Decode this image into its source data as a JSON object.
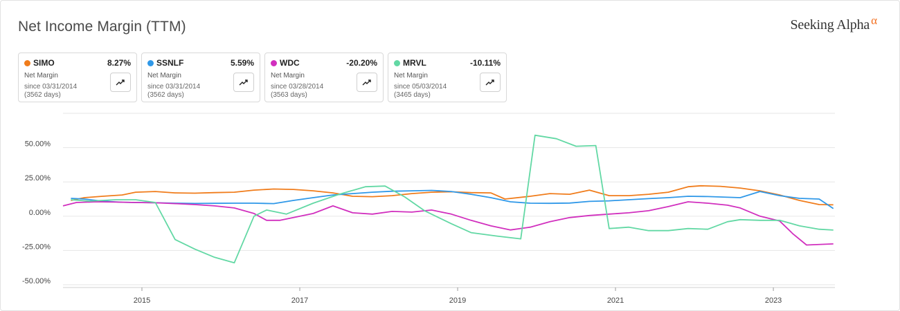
{
  "header": {
    "title": "Net Income Margin (TTM)",
    "brand_name": "Seeking Alpha",
    "brand_mark": "α"
  },
  "cards": [
    {
      "symbol": "SIMO",
      "value": "8.27%",
      "metric": "Net Margin",
      "since": "since 03/31/2014",
      "days": "(3562 days)",
      "color": "#f07c1b"
    },
    {
      "symbol": "SSNLF",
      "value": "5.59%",
      "metric": "Net Margin",
      "since": "since 03/31/2014",
      "days": "(3562 days)",
      "color": "#2f98e8"
    },
    {
      "symbol": "WDC",
      "value": "-20.20%",
      "metric": "Net Margin",
      "since": "since 03/28/2014",
      "days": "(3563 days)",
      "color": "#d12fbe"
    },
    {
      "symbol": "MRVL",
      "value": "-10.11%",
      "metric": "Net Margin",
      "since": "since 05/03/2014",
      "days": "(3465 days)",
      "color": "#62d8a4"
    }
  ],
  "chart_data": {
    "type": "line",
    "title": "Net Income Margin (TTM)",
    "xlabel": "",
    "ylabel": "",
    "xlim": [
      2014.0,
      2023.78
    ],
    "ylim": [
      -52,
      75
    ],
    "yticks": [
      50,
      25,
      0,
      -25,
      -50
    ],
    "ytick_labels": [
      "50.00%",
      "25.00%",
      "0.00%",
      "-25.00%",
      "-50.00%"
    ],
    "xticks": [
      2015,
      2017,
      2019,
      2021,
      2023
    ],
    "xtick_labels": [
      "2015",
      "2017",
      "2019",
      "2021",
      "2023"
    ],
    "grid": true,
    "series": [
      {
        "name": "SIMO",
        "color": "#f07c1b",
        "points": [
          [
            2014.1,
            11.5
          ],
          [
            2014.27,
            13.5
          ],
          [
            2014.5,
            14.5
          ],
          [
            2014.75,
            15.5
          ],
          [
            2014.92,
            17.5
          ],
          [
            2015.17,
            18
          ],
          [
            2015.42,
            17
          ],
          [
            2015.67,
            16.8
          ],
          [
            2015.92,
            17.2
          ],
          [
            2016.17,
            17.5
          ],
          [
            2016.42,
            19
          ],
          [
            2016.67,
            19.8
          ],
          [
            2016.92,
            19.5
          ],
          [
            2017.17,
            18.5
          ],
          [
            2017.42,
            17
          ],
          [
            2017.67,
            14.5
          ],
          [
            2017.92,
            14.2
          ],
          [
            2018.17,
            15
          ],
          [
            2018.42,
            16.5
          ],
          [
            2018.67,
            17.5
          ],
          [
            2018.92,
            17.8
          ],
          [
            2019.17,
            17.2
          ],
          [
            2019.42,
            17
          ],
          [
            2019.6,
            12.5
          ],
          [
            2019.92,
            14.5
          ],
          [
            2020.17,
            16.5
          ],
          [
            2020.42,
            16
          ],
          [
            2020.67,
            19
          ],
          [
            2020.92,
            15
          ],
          [
            2021.17,
            15
          ],
          [
            2021.42,
            16
          ],
          [
            2021.67,
            17.5
          ],
          [
            2021.92,
            21.5
          ],
          [
            2022.08,
            22.2
          ],
          [
            2022.33,
            21.8
          ],
          [
            2022.58,
            20.5
          ],
          [
            2022.83,
            18.5
          ],
          [
            2023.08,
            15.5
          ],
          [
            2023.33,
            11.5
          ],
          [
            2023.58,
            8.5
          ],
          [
            2023.76,
            8.27
          ]
        ]
      },
      {
        "name": "SSNLF",
        "color": "#2f98e8",
        "points": [
          [
            2014.1,
            13
          ],
          [
            2014.27,
            12.5
          ],
          [
            2014.5,
            11
          ],
          [
            2014.75,
            10.2
          ],
          [
            2014.92,
            10
          ],
          [
            2015.17,
            9.8
          ],
          [
            2015.42,
            9.5
          ],
          [
            2015.67,
            9.3
          ],
          [
            2015.92,
            9.4
          ],
          [
            2016.17,
            9.5
          ],
          [
            2016.42,
            9.5
          ],
          [
            2016.67,
            9.2
          ],
          [
            2016.92,
            11.5
          ],
          [
            2017.17,
            13.5
          ],
          [
            2017.42,
            15.5
          ],
          [
            2017.67,
            16.5
          ],
          [
            2017.92,
            17.5
          ],
          [
            2018.17,
            18.2
          ],
          [
            2018.42,
            18.5
          ],
          [
            2018.67,
            18.8
          ],
          [
            2018.92,
            18
          ],
          [
            2019.17,
            16
          ],
          [
            2019.42,
            13.5
          ],
          [
            2019.67,
            10.5
          ],
          [
            2019.92,
            9.5
          ],
          [
            2020.17,
            9.4
          ],
          [
            2020.42,
            9.6
          ],
          [
            2020.67,
            10.8
          ],
          [
            2020.92,
            11.2
          ],
          [
            2021.17,
            12
          ],
          [
            2021.42,
            12.8
          ],
          [
            2021.67,
            13.5
          ],
          [
            2021.92,
            14.5
          ],
          [
            2022.17,
            14.3
          ],
          [
            2022.42,
            13.8
          ],
          [
            2022.58,
            13.5
          ],
          [
            2022.83,
            18
          ],
          [
            2023.08,
            15
          ],
          [
            2023.33,
            13
          ],
          [
            2023.58,
            12.5
          ],
          [
            2023.76,
            5.59
          ]
        ]
      },
      {
        "name": "WDC",
        "color": "#d12fbe",
        "points": [
          [
            2014.0,
            7.5
          ],
          [
            2014.17,
            10
          ],
          [
            2014.42,
            10.5
          ],
          [
            2014.67,
            10.3
          ],
          [
            2014.92,
            10
          ],
          [
            2015.17,
            9.8
          ],
          [
            2015.42,
            9.2
          ],
          [
            2015.67,
            8.5
          ],
          [
            2015.92,
            7.5
          ],
          [
            2016.17,
            6
          ],
          [
            2016.42,
            2
          ],
          [
            2016.58,
            -3
          ],
          [
            2016.75,
            -3
          ],
          [
            2016.92,
            -1
          ],
          [
            2017.17,
            2
          ],
          [
            2017.42,
            7.5
          ],
          [
            2017.67,
            2.5
          ],
          [
            2017.92,
            1.5
          ],
          [
            2018.17,
            3.5
          ],
          [
            2018.42,
            3
          ],
          [
            2018.67,
            4.5
          ],
          [
            2018.92,
            1.5
          ],
          [
            2019.17,
            -3
          ],
          [
            2019.42,
            -7
          ],
          [
            2019.67,
            -10
          ],
          [
            2019.92,
            -8
          ],
          [
            2020.17,
            -4
          ],
          [
            2020.42,
            -1
          ],
          [
            2020.67,
            0.5
          ],
          [
            2020.92,
            1.5
          ],
          [
            2021.17,
            2.5
          ],
          [
            2021.42,
            4
          ],
          [
            2021.67,
            7
          ],
          [
            2021.92,
            10.5
          ],
          [
            2022.17,
            9.5
          ],
          [
            2022.42,
            8
          ],
          [
            2022.58,
            6
          ],
          [
            2022.83,
            0
          ],
          [
            2023.08,
            -3.5
          ],
          [
            2023.25,
            -13
          ],
          [
            2023.42,
            -21
          ],
          [
            2023.76,
            -20.2
          ]
        ]
      },
      {
        "name": "MRVL",
        "color": "#62d8a4",
        "points": [
          [
            2014.1,
            12
          ],
          [
            2014.33,
            11
          ],
          [
            2014.67,
            12
          ],
          [
            2014.92,
            12
          ],
          [
            2015.17,
            10
          ],
          [
            2015.42,
            -17
          ],
          [
            2015.67,
            -24
          ],
          [
            2015.92,
            -30
          ],
          [
            2016.17,
            -34
          ],
          [
            2016.42,
            0
          ],
          [
            2016.58,
            4.5
          ],
          [
            2016.83,
            1.5
          ],
          [
            2017.17,
            9.5
          ],
          [
            2017.5,
            16
          ],
          [
            2017.83,
            21.5
          ],
          [
            2018.08,
            22
          ],
          [
            2018.33,
            14
          ],
          [
            2018.58,
            4
          ],
          [
            2018.92,
            -5.5
          ],
          [
            2019.17,
            -12
          ],
          [
            2019.5,
            -14.5
          ],
          [
            2019.8,
            -16.5
          ],
          [
            2019.98,
            59
          ],
          [
            2020.25,
            56.5
          ],
          [
            2020.5,
            51
          ],
          [
            2020.75,
            51.5
          ],
          [
            2020.92,
            -9
          ],
          [
            2021.17,
            -8
          ],
          [
            2021.42,
            -10.5
          ],
          [
            2021.67,
            -10.5
          ],
          [
            2021.92,
            -9
          ],
          [
            2022.17,
            -9.5
          ],
          [
            2022.42,
            -4
          ],
          [
            2022.58,
            -2.5
          ],
          [
            2022.83,
            -3
          ],
          [
            2023.08,
            -3
          ],
          [
            2023.33,
            -7
          ],
          [
            2023.58,
            -9.5
          ],
          [
            2023.76,
            -10.11
          ]
        ]
      }
    ]
  }
}
